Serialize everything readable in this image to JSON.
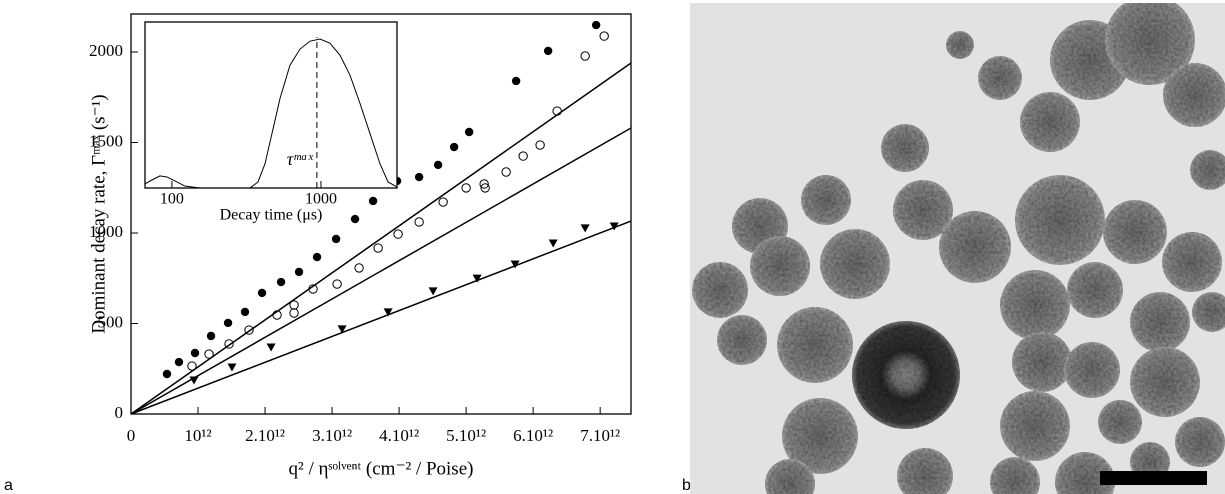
{
  "chart_data": [
    {
      "type": "scatter",
      "panel_label": "a",
      "x_label": "q² / ηˢᵒˡᵛᵉⁿᵗ (cm⁻² / Poise)",
      "y_label": "Dominant decay rate, Γᵐᵃˣ (s⁻¹)",
      "xlim": [
        0,
        7460000000000.0
      ],
      "ylim": [
        0,
        2210
      ],
      "xticks": [
        0,
        {
          "value": 1000000000000.0,
          "label": "10¹²"
        },
        {
          "value": 2000000000000.0,
          "label": "2.10¹²"
        },
        {
          "value": 3000000000000.0,
          "label": "3.10¹²"
        },
        {
          "value": 4000000000000.0,
          "label": "4.10¹²"
        },
        {
          "value": 5000000000000.0,
          "label": "5.10¹²"
        },
        {
          "value": 6000000000000.0,
          "label": "6.10¹²"
        },
        {
          "value": 7000000000000.0,
          "label": "7.10¹²"
        }
      ],
      "yticks": [
        0,
        500,
        1000,
        1500,
        2000
      ],
      "series": [
        {
          "marker": "circle-filled",
          "color": "#000000",
          "x": [
            537000000000.0,
            716000000000.0,
            955000000000.0,
            1194000000000.0,
            1448000000000.0,
            1701000000000.0,
            1955000000000.0,
            2239000000000.0,
            2507000000000.0,
            2776000000000.0,
            3060000000000.0,
            3343000000000.0,
            3612000000000.0,
            3970000000000.0,
            4299000000000.0,
            4582000000000.0,
            4821000000000.0,
            5045000000000.0,
            5746000000000.0,
            6224000000000.0,
            6940000000000.0
          ],
          "values": [
            221,
            287,
            337,
            431,
            503,
            564,
            669,
            729,
            785,
            867,
            967,
            1077,
            1177,
            1287,
            1309,
            1376,
            1475,
            1558,
            1840,
            2006,
            2149
          ]
        },
        {
          "marker": "circle-open",
          "color": "#000000",
          "x": [
            910000000000.0,
            1164000000000.0,
            1463000000000.0,
            1761000000000.0,
            2179000000000.0,
            2433000000000.0,
            2433000000000.0,
            2716000000000.0,
            3075000000000.0,
            3403000000000.0,
            3687000000000.0,
            3985000000000.0,
            4299000000000.0,
            4657000000000.0,
            5000000000000.0,
            5269000000000.0,
            5284000000000.0,
            5597000000000.0,
            5851000000000.0,
            6104000000000.0,
            6358000000000.0,
            6776000000000.0,
            7060000000000.0
          ],
          "values": [
            265,
            331,
            387,
            464,
            547,
            558,
            602,
            691,
            718,
            807,
            917,
            994,
            1061,
            1171,
            1249,
            1271,
            1249,
            1337,
            1425,
            1486,
            1674,
            1978,
            2088
          ]
        },
        {
          "marker": "triangle-down",
          "color": "#000000",
          "x": [
            940000000000.0,
            1507000000000.0,
            2090000000000.0,
            3149000000000.0,
            3836000000000.0,
            4507000000000.0,
            5164000000000.0,
            5731000000000.0,
            6299000000000.0,
            6776000000000.0,
            7209000000000.0
          ],
          "values": [
            188,
            260,
            370,
            470,
            564,
            680,
            751,
            829,
            945,
            1028,
            1039
          ]
        }
      ],
      "fit_lines": [
        {
          "color": "#000000",
          "x": [
            0,
            7460000000000.0
          ],
          "values": [
            0,
            1939
          ]
        },
        {
          "color": "#000000",
          "x": [
            0,
            7460000000000.0
          ],
          "values": [
            0,
            1580
          ]
        },
        {
          "color": "#000000",
          "x": [
            0,
            7460000000000.0
          ],
          "values": [
            0,
            1066
          ]
        }
      ]
    },
    {
      "type": "line",
      "x_label": "Decay time (μs)",
      "log_x": true,
      "xlim": [
        66,
        3236
      ],
      "ylim": [
        0,
        1.1
      ],
      "xticks": [
        100,
        1000
      ],
      "annotation": {
        "text": "τᵐᵃˣ",
        "x": 939
      },
      "series": [
        {
          "color": "#000000",
          "x": [
            65.9,
            73.4,
            83.1,
            92.6,
            104.7,
            122.2,
            154,
            334,
            378,
            421,
            469,
            531,
            619,
            723,
            844,
            985,
            1148,
            1342,
            1566,
            1828,
            2133,
            2489,
            2818,
            3236
          ],
          "values": [
            0.027,
            0.053,
            0.08,
            0.073,
            0.047,
            0.013,
            0,
            0,
            0.04,
            0.16,
            0.36,
            0.593,
            0.813,
            0.92,
            0.973,
            0.987,
            0.96,
            0.88,
            0.747,
            0.56,
            0.36,
            0.16,
            0.04,
            0.007
          ]
        }
      ]
    }
  ],
  "figure_b": {
    "panel_label": "b"
  }
}
